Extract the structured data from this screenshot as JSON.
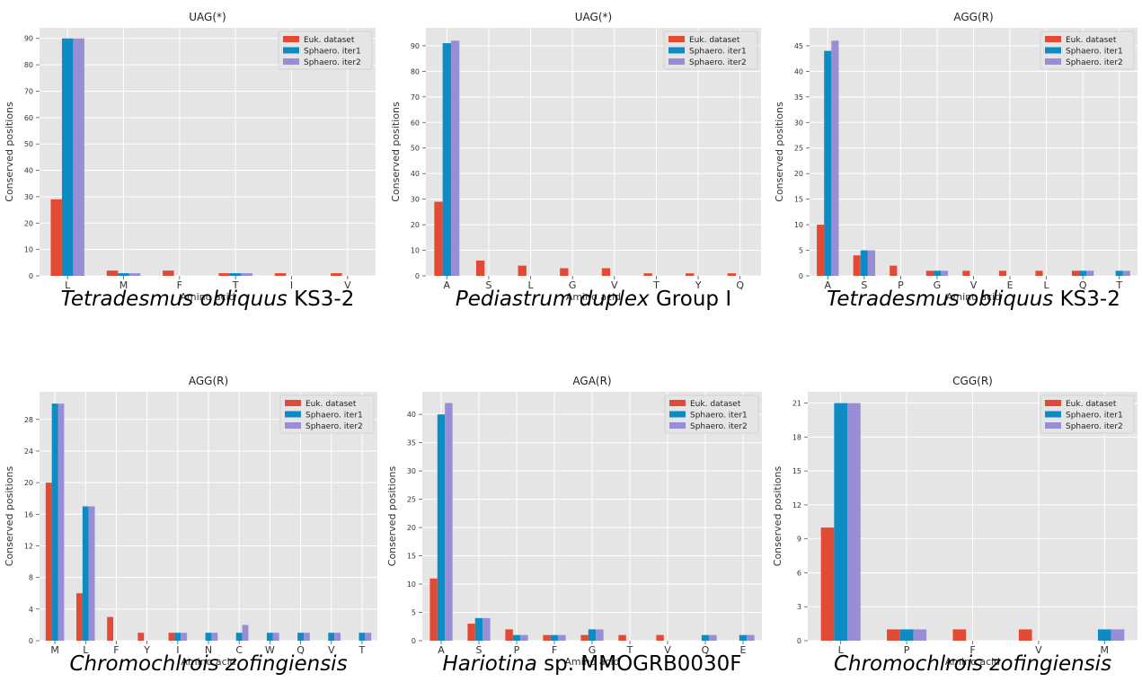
{
  "legend_labels": [
    "Euk. dataset",
    "Sphaero. iter1",
    "Sphaero. iter2"
  ],
  "colors": {
    "series": [
      "#E24A33",
      "#0E8BC3",
      "#988ED5"
    ],
    "panel_bg": "#E5E5E5",
    "grid": "#FFFFFF",
    "text": "#333333"
  },
  "chart_data": [
    {
      "type": "bar",
      "title": "UAG(*)",
      "xlabel": "Amino acid",
      "ylabel": "Conserved positions",
      "categories": [
        "L",
        "M",
        "F",
        "T",
        "I",
        "V"
      ],
      "ylim": [
        0,
        94
      ],
      "yticks": [
        0,
        10,
        20,
        30,
        40,
        50,
        60,
        70,
        80,
        90
      ],
      "grid": true,
      "legend": "top-right",
      "series": [
        {
          "name": "Euk. dataset",
          "values": [
            29,
            2,
            2,
            1,
            1,
            1
          ]
        },
        {
          "name": "Sphaero. iter1",
          "values": [
            90,
            1,
            0,
            1,
            0,
            0
          ]
        },
        {
          "name": "Sphaero. iter2",
          "values": [
            90,
            1,
            0,
            1,
            0,
            0
          ]
        }
      ],
      "species": {
        "italic": "Tetradesmus obliquus",
        "rest": " KS3-2"
      }
    },
    {
      "type": "bar",
      "title": "UAG(*)",
      "xlabel": "Amino acid",
      "ylabel": "Conserved positions",
      "categories": [
        "A",
        "S",
        "L",
        "G",
        "V",
        "T",
        "Y",
        "Q"
      ],
      "ylim": [
        0,
        97
      ],
      "yticks": [
        0,
        10,
        20,
        30,
        40,
        50,
        60,
        70,
        80,
        90
      ],
      "grid": true,
      "legend": "top-right",
      "series": [
        {
          "name": "Euk. dataset",
          "values": [
            29,
            6,
            4,
            3,
            3,
            1,
            1,
            1
          ]
        },
        {
          "name": "Sphaero. iter1",
          "values": [
            91,
            0,
            0,
            0,
            0,
            0,
            0,
            0
          ]
        },
        {
          "name": "Sphaero. iter2",
          "values": [
            92,
            0,
            0,
            0,
            0,
            0,
            0,
            0
          ]
        }
      ],
      "species": {
        "italic": "Pediastrum duplex",
        "rest": " Group I"
      }
    },
    {
      "type": "bar",
      "title": "AGG(R)",
      "xlabel": "Amino acid",
      "ylabel": "Conserved positions",
      "categories": [
        "A",
        "S",
        "P",
        "G",
        "V",
        "E",
        "L",
        "Q",
        "T"
      ],
      "ylim": [
        0,
        48.5
      ],
      "yticks": [
        0,
        5,
        10,
        15,
        20,
        25,
        30,
        35,
        40,
        45
      ],
      "grid": true,
      "legend": "top-right",
      "series": [
        {
          "name": "Euk. dataset",
          "values": [
            10,
            4,
            2,
            1,
            1,
            1,
            1,
            1,
            0
          ]
        },
        {
          "name": "Sphaero. iter1",
          "values": [
            44,
            5,
            0,
            1,
            0,
            0,
            0,
            1,
            1
          ]
        },
        {
          "name": "Sphaero. iter2",
          "values": [
            46,
            5,
            0,
            1,
            0,
            0,
            0,
            1,
            1
          ]
        }
      ],
      "species": {
        "italic": "Tetradesmus obliquus",
        "rest": " KS3-2"
      }
    },
    {
      "type": "bar",
      "title": "AGG(R)",
      "xlabel": "Amino acid",
      "ylabel": "Conserved positions",
      "categories": [
        "M",
        "L",
        "F",
        "Y",
        "I",
        "N",
        "C",
        "W",
        "Q",
        "V",
        "T"
      ],
      "ylim": [
        0,
        31.5
      ],
      "yticks": [
        0,
        4,
        8,
        12,
        16,
        20,
        24,
        28
      ],
      "grid": true,
      "legend": "top-right",
      "series": [
        {
          "name": "Euk. dataset",
          "values": [
            20,
            6,
            3,
            1,
            1,
            0,
            0,
            0,
            0,
            0,
            0
          ]
        },
        {
          "name": "Sphaero. iter1",
          "values": [
            30,
            17,
            0,
            0,
            1,
            1,
            1,
            1,
            1,
            1,
            1
          ]
        },
        {
          "name": "Sphaero. iter2",
          "values": [
            30,
            17,
            0,
            0,
            1,
            1,
            2,
            1,
            1,
            1,
            1
          ]
        }
      ],
      "species": {
        "italic": "Chromochlrois zofingiensis",
        "rest": ""
      }
    },
    {
      "type": "bar",
      "title": "AGA(R)",
      "xlabel": "Amino acid",
      "ylabel": "Conserved positions",
      "categories": [
        "A",
        "S",
        "P",
        "F",
        "G",
        "T",
        "V",
        "Q",
        "E"
      ],
      "ylim": [
        0,
        44
      ],
      "yticks": [
        0,
        5,
        10,
        15,
        20,
        25,
        30,
        35,
        40
      ],
      "grid": true,
      "legend": "top-right",
      "series": [
        {
          "name": "Euk. dataset",
          "values": [
            11,
            3,
            2,
            1,
            1,
            1,
            1,
            0,
            0
          ]
        },
        {
          "name": "Sphaero. iter1",
          "values": [
            40,
            4,
            1,
            1,
            2,
            0,
            0,
            1,
            1
          ]
        },
        {
          "name": "Sphaero. iter2",
          "values": [
            42,
            4,
            1,
            1,
            2,
            0,
            0,
            1,
            1
          ]
        }
      ],
      "species": {
        "italic": "Hariotina",
        "rest": " sp. MMOGRB0030F"
      }
    },
    {
      "type": "bar",
      "title": "CGG(R)",
      "xlabel": "Amino acid",
      "ylabel": "Conserved positions",
      "categories": [
        "L",
        "P",
        "F",
        "V",
        "M"
      ],
      "ylim": [
        0,
        22
      ],
      "yticks": [
        0,
        3,
        6,
        9,
        12,
        15,
        18,
        21
      ],
      "grid": true,
      "legend": "top-right",
      "series": [
        {
          "name": "Euk. dataset",
          "values": [
            10,
            1,
            1,
            1,
            0
          ]
        },
        {
          "name": "Sphaero. iter1",
          "values": [
            21,
            1,
            0,
            0,
            1
          ]
        },
        {
          "name": "Sphaero. iter2",
          "values": [
            21,
            1,
            0,
            0,
            1
          ]
        }
      ],
      "species": {
        "italic": "Chromochlrois zofingiensis",
        "rest": ""
      }
    }
  ]
}
